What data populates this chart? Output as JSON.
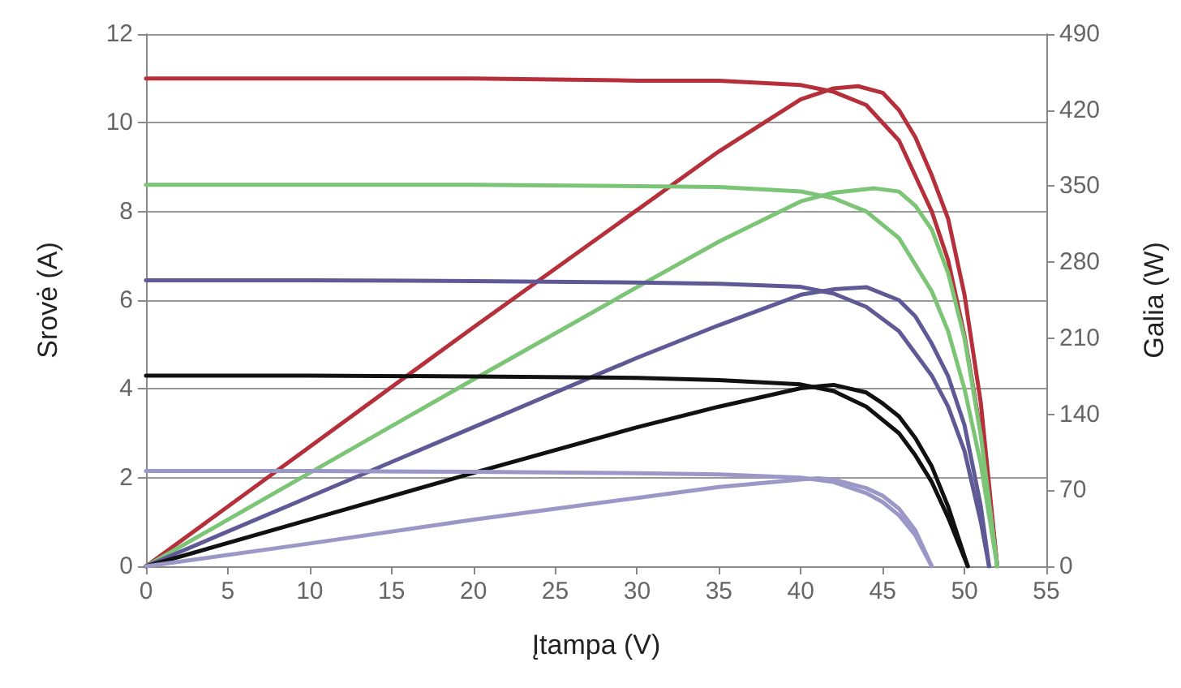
{
  "chart_data": {
    "type": "line",
    "xlabel": "Įtampa (V)",
    "ylabel": "Srovė (A)",
    "y2label": "Galia (W)",
    "xlim": [
      0,
      55
    ],
    "xticks": [
      0,
      5,
      10,
      15,
      20,
      25,
      30,
      35,
      40,
      45,
      50,
      55
    ],
    "ylim": [
      0,
      12
    ],
    "yticks": [
      0,
      2,
      4,
      6,
      8,
      10,
      12
    ],
    "y2lim": [
      0,
      490
    ],
    "y2ticks": [
      0,
      70,
      140,
      210,
      280,
      350,
      420,
      490
    ],
    "grid": "y",
    "legend": false,
    "marker": "none",
    "line_style": "solid",
    "series": [
      {
        "color": "#b5303a",
        "x": [
          0,
          10,
          20,
          30,
          35,
          40,
          42,
          44,
          46,
          48,
          49,
          50,
          51,
          51.5,
          52
        ],
        "values": [
          11,
          11,
          11,
          10.95,
          10.95,
          10.85,
          10.7,
          10.4,
          9.6,
          8,
          6.9,
          5.2,
          3,
          1.7,
          0
        ]
      },
      {
        "color": "#b5303a",
        "axis": "y2",
        "x": [
          0,
          10,
          20,
          30,
          35,
          40,
          42,
          43.5,
          45,
          46,
          47,
          48,
          49,
          50,
          51,
          52
        ],
        "values": [
          0,
          110,
          220,
          328,
          382,
          430,
          440,
          442,
          436,
          420,
          395,
          360,
          320,
          250,
          150,
          0
        ]
      },
      {
        "color": "#7cc576",
        "x": [
          0,
          10,
          20,
          30,
          35,
          40,
          42,
          44,
          46,
          48,
          49,
          50,
          51,
          52
        ],
        "values": [
          8.6,
          8.6,
          8.6,
          8.57,
          8.55,
          8.45,
          8.3,
          8,
          7.4,
          6.2,
          5.3,
          4,
          2.3,
          0
        ]
      },
      {
        "color": "#7cc576",
        "axis": "y2",
        "x": [
          0,
          10,
          20,
          30,
          35,
          40,
          42,
          44.5,
          46,
          47,
          48,
          49,
          50,
          51,
          52
        ],
        "values": [
          0,
          86,
          172,
          257,
          299,
          336,
          344,
          348,
          345,
          332,
          310,
          270,
          210,
          120,
          0
        ]
      },
      {
        "color": "#5f5a96",
        "x": [
          0,
          10,
          20,
          30,
          35,
          40,
          42,
          44,
          46,
          48,
          49,
          50,
          51,
          51.5
        ],
        "values": [
          6.45,
          6.45,
          6.43,
          6.4,
          6.37,
          6.3,
          6.15,
          5.85,
          5.3,
          4.3,
          3.6,
          2.6,
          1,
          0
        ]
      },
      {
        "color": "#5f5a96",
        "axis": "y2",
        "x": [
          0,
          10,
          20,
          30,
          35,
          40,
          42,
          44,
          46,
          47,
          48,
          49,
          50,
          51,
          51.5
        ],
        "values": [
          0,
          64,
          128,
          192,
          222,
          250,
          255,
          257,
          245,
          230,
          205,
          175,
          130,
          55,
          0
        ]
      },
      {
        "color": "#111111",
        "x": [
          0,
          10,
          20,
          30,
          35,
          40,
          42,
          44,
          46,
          47,
          48,
          49,
          50.2
        ],
        "values": [
          4.3,
          4.3,
          4.28,
          4.25,
          4.2,
          4.1,
          3.95,
          3.6,
          3,
          2.5,
          1.9,
          1.1,
          0
        ]
      },
      {
        "color": "#111111",
        "axis": "y2",
        "x": [
          0,
          10,
          20,
          30,
          35,
          40,
          42,
          44,
          45,
          46,
          47,
          48,
          49,
          50.2
        ],
        "values": [
          0,
          43,
          86,
          128,
          147,
          164,
          167,
          160,
          150,
          138,
          118,
          92,
          55,
          0
        ]
      },
      {
        "color": "#9b98c8",
        "x": [
          0,
          10,
          20,
          30,
          35,
          40,
          42,
          44,
          45,
          46,
          47,
          48
        ],
        "values": [
          2.15,
          2.15,
          2.13,
          2.1,
          2.07,
          2,
          1.9,
          1.65,
          1.45,
          1.15,
          0.7,
          0
        ]
      },
      {
        "color": "#9b98c8",
        "axis": "y2",
        "x": [
          0,
          10,
          20,
          30,
          35,
          40,
          41,
          42,
          44,
          45,
          46,
          47,
          48
        ],
        "values": [
          0,
          21,
          43,
          63,
          73,
          80,
          81,
          80,
          72,
          65,
          53,
          33,
          0
        ]
      }
    ]
  }
}
